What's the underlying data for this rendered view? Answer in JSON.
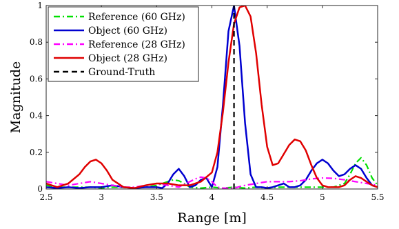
{
  "chart_data": {
    "type": "line",
    "title": "",
    "xlabel": "Range [m]",
    "ylabel": "Magnitude",
    "xlim": [
      2.5,
      5.5
    ],
    "ylim": [
      0,
      1
    ],
    "xticks": [
      "2.5",
      "3",
      "3.5",
      "4",
      "4.5",
      "5",
      "5.5"
    ],
    "xtick_values": [
      2.5,
      3,
      3.5,
      4,
      4.5,
      5,
      5.5
    ],
    "yticks": [
      "0",
      "0.2",
      "0.4",
      "0.6",
      "0.8",
      "1"
    ],
    "ytick_values": [
      0,
      0.2,
      0.4,
      0.6,
      0.8,
      1
    ],
    "grid": false,
    "legend_position": "top-left",
    "series": [
      {
        "name": "Reference (60 GHz)",
        "color": "#00e000",
        "style": "dash-dot",
        "x": [
          2.5,
          2.6,
          2.7,
          2.8,
          2.9,
          3.0,
          3.1,
          3.2,
          3.3,
          3.4,
          3.5,
          3.6,
          3.65,
          3.7,
          3.75,
          3.8,
          3.9,
          4.0,
          4.1,
          4.2,
          4.3,
          4.4,
          4.5,
          4.6,
          4.7,
          4.8,
          4.9,
          5.0,
          5.1,
          5.2,
          5.25,
          5.3,
          5.35,
          5.4,
          5.45,
          5.5
        ],
        "y": [
          0.02,
          0.01,
          0.01,
          0.01,
          0.01,
          0.005,
          0.01,
          0.01,
          0.005,
          0.01,
          0.02,
          0.04,
          0.05,
          0.045,
          0.03,
          0.01,
          0.005,
          0.01,
          0.005,
          0.01,
          0.005,
          0.01,
          0.005,
          0.01,
          0.01,
          0.01,
          0.01,
          0.01,
          0.01,
          0.03,
          0.08,
          0.14,
          0.17,
          0.13,
          0.06,
          0.02
        ]
      },
      {
        "name": "Object (60 GHz)",
        "color": "#0000d0",
        "style": "solid",
        "x": [
          2.5,
          2.6,
          2.7,
          2.8,
          2.9,
          3.0,
          3.1,
          3.2,
          3.3,
          3.4,
          3.5,
          3.55,
          3.6,
          3.65,
          3.7,
          3.75,
          3.8,
          3.85,
          3.9,
          3.95,
          4.0,
          4.05,
          4.1,
          4.15,
          4.2,
          4.25,
          4.3,
          4.35,
          4.4,
          4.45,
          4.5,
          4.55,
          4.6,
          4.65,
          4.7,
          4.75,
          4.8,
          4.85,
          4.9,
          4.95,
          5.0,
          5.05,
          5.1,
          5.15,
          5.2,
          5.25,
          5.3,
          5.35,
          5.4,
          5.45,
          5.5
        ],
        "y": [
          0.01,
          0.005,
          0.01,
          0.005,
          0.01,
          0.01,
          0.02,
          0.01,
          0.005,
          0.01,
          0.01,
          0.005,
          0.03,
          0.08,
          0.11,
          0.07,
          0.01,
          0.02,
          0.05,
          0.06,
          0.01,
          0.12,
          0.46,
          0.86,
          1.0,
          0.78,
          0.36,
          0.08,
          0.01,
          0.01,
          0.005,
          0.01,
          0.02,
          0.03,
          0.01,
          0.01,
          0.02,
          0.05,
          0.1,
          0.14,
          0.16,
          0.14,
          0.1,
          0.07,
          0.08,
          0.11,
          0.13,
          0.11,
          0.06,
          0.02,
          0.01
        ]
      },
      {
        "name": "Reference (28 GHz)",
        "color": "#ff00ff",
        "style": "dash-dot",
        "x": [
          2.5,
          2.6,
          2.7,
          2.8,
          2.9,
          3.0,
          3.1,
          3.2,
          3.3,
          3.4,
          3.5,
          3.6,
          3.7,
          3.8,
          3.85,
          3.9,
          3.95,
          4.0,
          4.05,
          4.1,
          4.2,
          4.3,
          4.4,
          4.5,
          4.6,
          4.7,
          4.8,
          4.9,
          5.0,
          5.1,
          5.2,
          5.3,
          5.4,
          5.5
        ],
        "y": [
          0.04,
          0.03,
          0.02,
          0.03,
          0.04,
          0.03,
          0.02,
          0.01,
          0.01,
          0.02,
          0.03,
          0.02,
          0.01,
          0.04,
          0.055,
          0.065,
          0.06,
          0.04,
          0.01,
          0.005,
          0.005,
          0.02,
          0.03,
          0.04,
          0.04,
          0.04,
          0.045,
          0.055,
          0.06,
          0.058,
          0.05,
          0.04,
          0.03,
          0.02
        ]
      },
      {
        "name": "Object (28 GHz)",
        "color": "#e00000",
        "style": "solid",
        "x": [
          2.5,
          2.6,
          2.7,
          2.8,
          2.85,
          2.9,
          2.95,
          3.0,
          3.05,
          3.1,
          3.2,
          3.3,
          3.4,
          3.5,
          3.6,
          3.7,
          3.8,
          3.9,
          4.0,
          4.05,
          4.1,
          4.15,
          4.2,
          4.25,
          4.3,
          4.35,
          4.4,
          4.45,
          4.5,
          4.55,
          4.6,
          4.65,
          4.7,
          4.75,
          4.8,
          4.85,
          4.9,
          4.95,
          5.0,
          5.05,
          5.1,
          5.15,
          5.2,
          5.25,
          5.3,
          5.35,
          5.4,
          5.45,
          5.5
        ],
        "y": [
          0.03,
          0.01,
          0.03,
          0.08,
          0.12,
          0.15,
          0.16,
          0.14,
          0.1,
          0.05,
          0.01,
          0.005,
          0.02,
          0.03,
          0.03,
          0.02,
          0.02,
          0.04,
          0.09,
          0.2,
          0.42,
          0.69,
          0.9,
          0.99,
          1.0,
          0.94,
          0.74,
          0.46,
          0.23,
          0.13,
          0.14,
          0.19,
          0.24,
          0.27,
          0.26,
          0.21,
          0.13,
          0.06,
          0.02,
          0.01,
          0.01,
          0.01,
          0.02,
          0.05,
          0.07,
          0.06,
          0.04,
          0.02,
          0.01
        ]
      },
      {
        "name": "Ground-Truth",
        "color": "#000000",
        "style": "dashed",
        "x": [
          4.2,
          4.2
        ],
        "y": [
          0,
          1
        ]
      }
    ]
  }
}
